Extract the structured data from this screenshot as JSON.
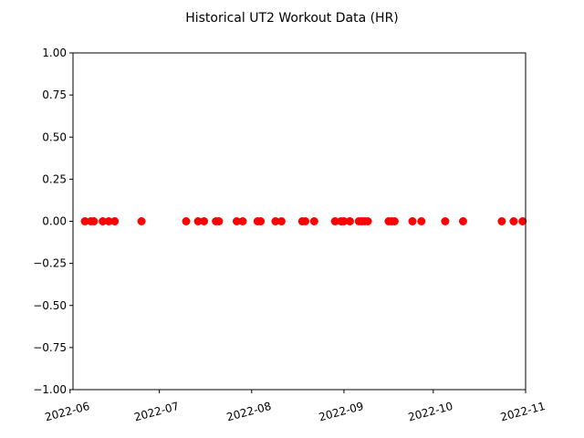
{
  "chart_data": {
    "type": "scatter",
    "title": "Historical UT2 Workout Data (HR)",
    "xlabel": "",
    "ylabel": "",
    "x_axis_type": "date",
    "xlim": [
      "2022-06-02",
      "2022-11-01"
    ],
    "ylim": [
      -1.0,
      1.0
    ],
    "x_ticks": [
      {
        "date": "2022-06-01",
        "label": "2022-06"
      },
      {
        "date": "2022-07-01",
        "label": "2022-07"
      },
      {
        "date": "2022-08-01",
        "label": "2022-08"
      },
      {
        "date": "2022-09-01",
        "label": "2022-09"
      },
      {
        "date": "2022-10-01",
        "label": "2022-10"
      },
      {
        "date": "2022-11-01",
        "label": "2022-11"
      }
    ],
    "x_tick_rotation_deg": 15,
    "y_ticks": [
      {
        "value": 1.0,
        "label": "1.00"
      },
      {
        "value": 0.75,
        "label": "0.75"
      },
      {
        "value": 0.5,
        "label": "0.50"
      },
      {
        "value": 0.25,
        "label": "0.25"
      },
      {
        "value": 0.0,
        "label": "0.00"
      },
      {
        "value": -0.25,
        "label": "−0.25"
      },
      {
        "value": -0.5,
        "label": "−0.50"
      },
      {
        "value": -0.75,
        "label": "−0.75"
      },
      {
        "value": -1.0,
        "label": "−1.00"
      }
    ],
    "grid": false,
    "legend": "none",
    "marker_color": "#ff0000",
    "series": [
      {
        "x": [
          "2022-06-06",
          "2022-06-08",
          "2022-06-09",
          "2022-06-12",
          "2022-06-14",
          "2022-06-16",
          "2022-06-25",
          "2022-07-10",
          "2022-07-14",
          "2022-07-16",
          "2022-07-20",
          "2022-07-21",
          "2022-07-27",
          "2022-07-29",
          "2022-08-03",
          "2022-08-04",
          "2022-08-09",
          "2022-08-11",
          "2022-08-18",
          "2022-08-19",
          "2022-08-22",
          "2022-08-29",
          "2022-08-31",
          "2022-09-01",
          "2022-09-03",
          "2022-09-06",
          "2022-09-07",
          "2022-09-08",
          "2022-09-09",
          "2022-09-16",
          "2022-09-17",
          "2022-09-18",
          "2022-09-24",
          "2022-09-27",
          "2022-10-05",
          "2022-10-11",
          "2022-10-24",
          "2022-10-28",
          "2022-10-31"
        ],
        "y": [
          0,
          0,
          0,
          0,
          0,
          0,
          0,
          0,
          0,
          0,
          0,
          0,
          0,
          0,
          0,
          0,
          0,
          0,
          0,
          0,
          0,
          0,
          0,
          0,
          0,
          0,
          0,
          0,
          0,
          0,
          0,
          0,
          0,
          0,
          0,
          0,
          0,
          0,
          0
        ]
      }
    ]
  }
}
